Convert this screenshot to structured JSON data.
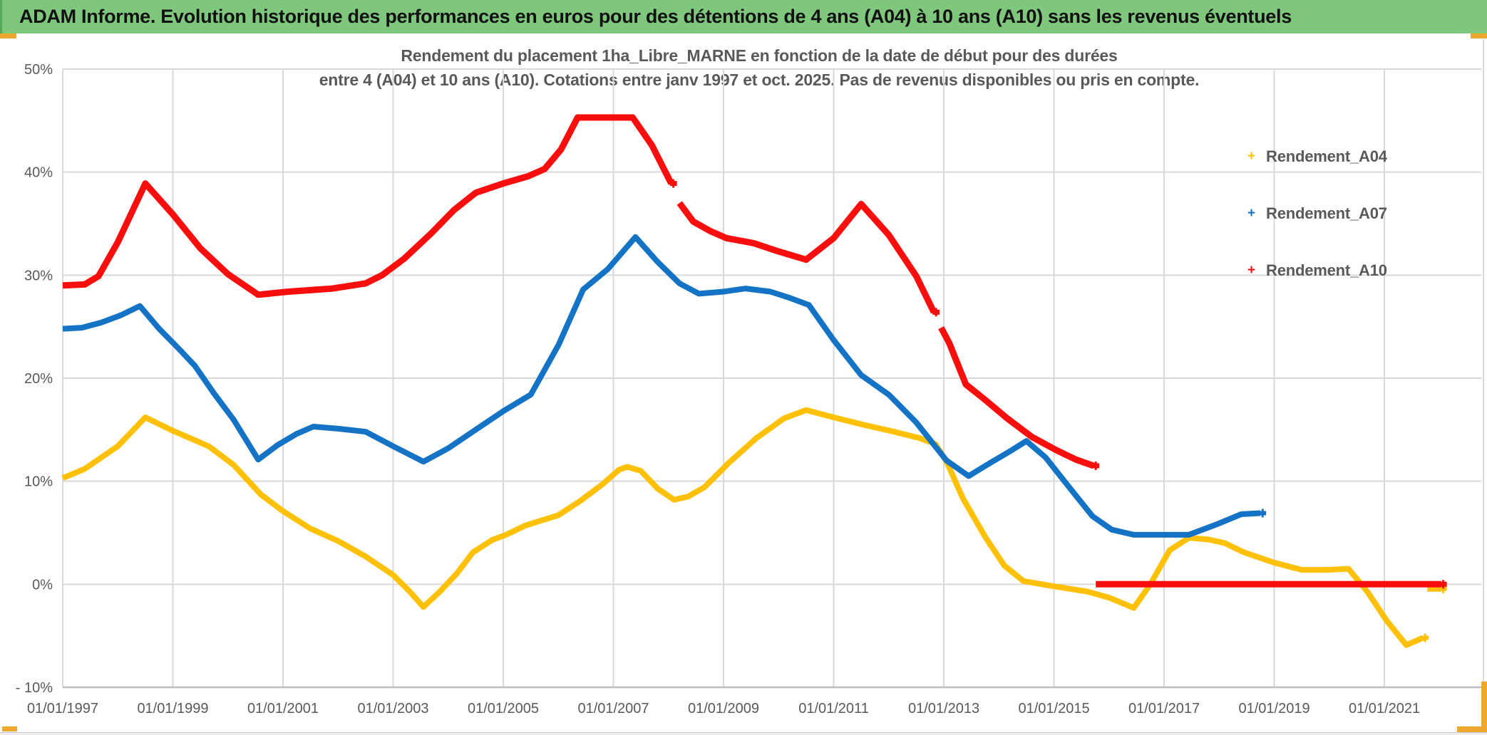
{
  "header": {
    "title": "ADAM Informe. Evolution historique des performances en euros pour des détentions de 4 ans (A04) à 10 ans (A10) sans les revenus éventuels"
  },
  "chart_data": {
    "type": "line",
    "title_line1": "Rendement du placement 1ha_Libre_MARNE en fonction de la date de début pour des durées",
    "title_line2": "entre 4 (A04) et 10 ans (A10). Cotations entre janv 1997 et oct. 2025. Pas de revenus disponibles ou pris en compte.",
    "x_axis": {
      "labels": [
        "01/01/1997",
        "01/01/1999",
        "01/01/2001",
        "01/01/2003",
        "01/01/2005",
        "01/01/2007",
        "01/01/2009",
        "01/01/2011",
        "01/01/2013",
        "01/01/2015",
        "01/01/2017",
        "01/01/2019",
        "01/01/2021"
      ],
      "years": [
        1997,
        1999,
        2001,
        2003,
        2005,
        2007,
        2009,
        2011,
        2013,
        2015,
        2017,
        2019,
        2021
      ],
      "range_years": [
        1997,
        2022.76
      ],
      "grid": true
    },
    "y_axis": {
      "labels": [
        "50%",
        "40%",
        "30%",
        "20%",
        "10%",
        "0%",
        "- 10%"
      ],
      "values": [
        50,
        40,
        30,
        20,
        10,
        0,
        -10
      ],
      "range": [
        -10,
        50
      ],
      "unit": "%",
      "grid": true
    },
    "legend": {
      "position": "right",
      "marker_glyph": "+"
    },
    "series": [
      {
        "name": "Rendement_A04",
        "color": "#ffc008",
        "width": 8,
        "segments": [
          [
            [
              1997.0,
              10.3
            ],
            [
              1997.4,
              11.2
            ],
            [
              1998.0,
              13.4
            ],
            [
              1998.5,
              16.2
            ],
            [
              1999.0,
              14.9
            ],
            [
              1999.35,
              14.1
            ],
            [
              1999.65,
              13.4
            ],
            [
              2000.1,
              11.6
            ],
            [
              2000.6,
              8.7
            ],
            [
              2001.0,
              7.1
            ],
            [
              2001.5,
              5.4
            ],
            [
              2002.0,
              4.2
            ],
            [
              2002.5,
              2.7
            ],
            [
              2003.0,
              0.9
            ],
            [
              2003.3,
              -0.7
            ],
            [
              2003.55,
              -2.2
            ],
            [
              2003.85,
              -0.7
            ],
            [
              2004.15,
              1.0
            ],
            [
              2004.45,
              3.1
            ],
            [
              2004.8,
              4.3
            ],
            [
              2005.05,
              4.8
            ],
            [
              2005.4,
              5.7
            ],
            [
              2006.0,
              6.7
            ],
            [
              2006.4,
              8.1
            ],
            [
              2006.8,
              9.7
            ],
            [
              2007.1,
              11.1
            ],
            [
              2007.25,
              11.4
            ],
            [
              2007.5,
              11.0
            ],
            [
              2007.8,
              9.3
            ],
            [
              2008.1,
              8.2
            ],
            [
              2008.35,
              8.5
            ],
            [
              2008.65,
              9.4
            ],
            [
              2009.1,
              11.8
            ],
            [
              2009.6,
              14.2
            ],
            [
              2010.1,
              16.1
            ],
            [
              2010.5,
              16.9
            ],
            [
              2011.0,
              16.2
            ],
            [
              2011.6,
              15.4
            ],
            [
              2012.1,
              14.8
            ],
            [
              2012.55,
              14.2
            ],
            [
              2012.85,
              13.6
            ],
            [
              2013.05,
              11.9
            ],
            [
              2013.35,
              8.3
            ],
            [
              2013.75,
              4.6
            ],
            [
              2014.1,
              1.8
            ],
            [
              2014.45,
              0.3
            ],
            [
              2015.0,
              -0.2
            ],
            [
              2015.6,
              -0.7
            ],
            [
              2016.0,
              -1.3
            ],
            [
              2016.45,
              -2.3
            ],
            [
              2016.75,
              0.0
            ],
            [
              2017.1,
              3.3
            ],
            [
              2017.45,
              4.5
            ],
            [
              2017.8,
              4.35
            ],
            [
              2018.1,
              4.0
            ],
            [
              2018.45,
              3.1
            ],
            [
              2019.0,
              2.1
            ],
            [
              2019.5,
              1.4
            ],
            [
              2019.95,
              1.4
            ],
            [
              2020.35,
              1.5
            ],
            [
              2020.7,
              -0.8
            ],
            [
              2021.05,
              -3.6
            ],
            [
              2021.4,
              -5.9
            ],
            [
              2021.7,
              -5.2
            ]
          ],
          [
            [
              2021.78,
              -0.45
            ],
            [
              2022.03,
              -0.45
            ]
          ]
        ]
      },
      {
        "name": "Rendement_A07",
        "color": "#1473c4",
        "width": 8,
        "segments": [
          [
            [
              1997.0,
              24.8
            ],
            [
              1997.35,
              24.9
            ],
            [
              1997.7,
              25.4
            ],
            [
              1998.05,
              26.1
            ],
            [
              1998.4,
              27.0
            ],
            [
              1998.75,
              24.8
            ],
            [
              1999.1,
              22.9
            ],
            [
              1999.4,
              21.2
            ],
            [
              1999.75,
              18.5
            ],
            [
              2000.1,
              16.0
            ],
            [
              2000.55,
              12.1
            ],
            [
              2000.9,
              13.5
            ],
            [
              2001.25,
              14.6
            ],
            [
              2001.55,
              15.3
            ],
            [
              2002.0,
              15.1
            ],
            [
              2002.5,
              14.8
            ],
            [
              2003.0,
              13.4
            ],
            [
              2003.55,
              11.9
            ],
            [
              2004.0,
              13.2
            ],
            [
              2004.5,
              15.0
            ],
            [
              2005.0,
              16.8
            ],
            [
              2005.5,
              18.4
            ],
            [
              2006.0,
              23.2
            ],
            [
              2006.45,
              28.6
            ],
            [
              2006.9,
              30.6
            ],
            [
              2007.4,
              33.7
            ],
            [
              2007.8,
              31.3
            ],
            [
              2008.2,
              29.2
            ],
            [
              2008.55,
              28.2
            ],
            [
              2009.0,
              28.4
            ],
            [
              2009.4,
              28.7
            ],
            [
              2009.85,
              28.4
            ],
            [
              2010.2,
              27.8
            ],
            [
              2010.55,
              27.1
            ],
            [
              2011.0,
              23.7
            ],
            [
              2011.5,
              20.3
            ],
            [
              2012.0,
              18.4
            ],
            [
              2012.5,
              15.7
            ],
            [
              2013.05,
              12.0
            ],
            [
              2013.45,
              10.5
            ],
            [
              2013.85,
              11.8
            ],
            [
              2014.2,
              12.9
            ],
            [
              2014.5,
              13.9
            ],
            [
              2014.85,
              12.3
            ],
            [
              2015.25,
              9.6
            ],
            [
              2015.7,
              6.6
            ],
            [
              2016.05,
              5.3
            ],
            [
              2016.45,
              4.8
            ],
            [
              2017.45,
              4.8
            ],
            [
              2017.95,
              5.8
            ],
            [
              2018.4,
              6.8
            ],
            [
              2018.75,
              6.9
            ]
          ]
        ]
      },
      {
        "name": "Rendement_A10",
        "color": "#f90e0e",
        "width": 9,
        "segments": [
          [
            [
              1997.0,
              29.0
            ],
            [
              1997.4,
              29.1
            ],
            [
              1997.65,
              29.9
            ],
            [
              1998.0,
              33.2
            ],
            [
              1998.5,
              38.9
            ],
            [
              1999.0,
              35.9
            ],
            [
              1999.5,
              32.6
            ],
            [
              2000.0,
              30.1
            ],
            [
              2000.55,
              28.1
            ],
            [
              2001.1,
              28.4
            ],
            [
              2001.9,
              28.7
            ],
            [
              2002.5,
              29.2
            ],
            [
              2002.8,
              30.0
            ],
            [
              2003.2,
              31.6
            ],
            [
              2003.7,
              34.1
            ],
            [
              2004.1,
              36.3
            ],
            [
              2004.5,
              38.0
            ],
            [
              2005.0,
              38.9
            ],
            [
              2005.45,
              39.6
            ],
            [
              2005.75,
              40.3
            ],
            [
              2006.05,
              42.2
            ],
            [
              2006.35,
              45.3
            ],
            [
              2007.35,
              45.3
            ],
            [
              2007.7,
              42.6
            ],
            [
              2008.05,
              38.9
            ]
          ],
          [
            [
              2008.2,
              37.0
            ],
            [
              2008.45,
              35.2
            ],
            [
              2008.75,
              34.3
            ],
            [
              2009.05,
              33.6
            ],
            [
              2009.55,
              33.1
            ],
            [
              2010.0,
              32.3
            ],
            [
              2010.5,
              31.5
            ],
            [
              2011.0,
              33.6
            ],
            [
              2011.5,
              36.9
            ],
            [
              2012.0,
              33.9
            ],
            [
              2012.5,
              29.9
            ],
            [
              2012.82,
              26.4
            ]
          ],
          [
            [
              2012.95,
              24.9
            ],
            [
              2013.1,
              23.4
            ],
            [
              2013.4,
              19.4
            ],
            [
              2013.75,
              17.9
            ],
            [
              2014.15,
              16.1
            ],
            [
              2014.6,
              14.3
            ],
            [
              2015.05,
              13.0
            ],
            [
              2015.4,
              12.1
            ],
            [
              2015.72,
              11.5
            ]
          ],
          [
            [
              2015.76,
              0.0
            ],
            [
              2022.03,
              0.0
            ]
          ]
        ]
      }
    ],
    "colors": {
      "grid": "#d9d9d9",
      "axis_line": "#bfbfbf",
      "axis_text": "#595959",
      "title_text": "#595959",
      "header_green": "#7ec77d",
      "accent_yellow": "#eda72c"
    }
  }
}
